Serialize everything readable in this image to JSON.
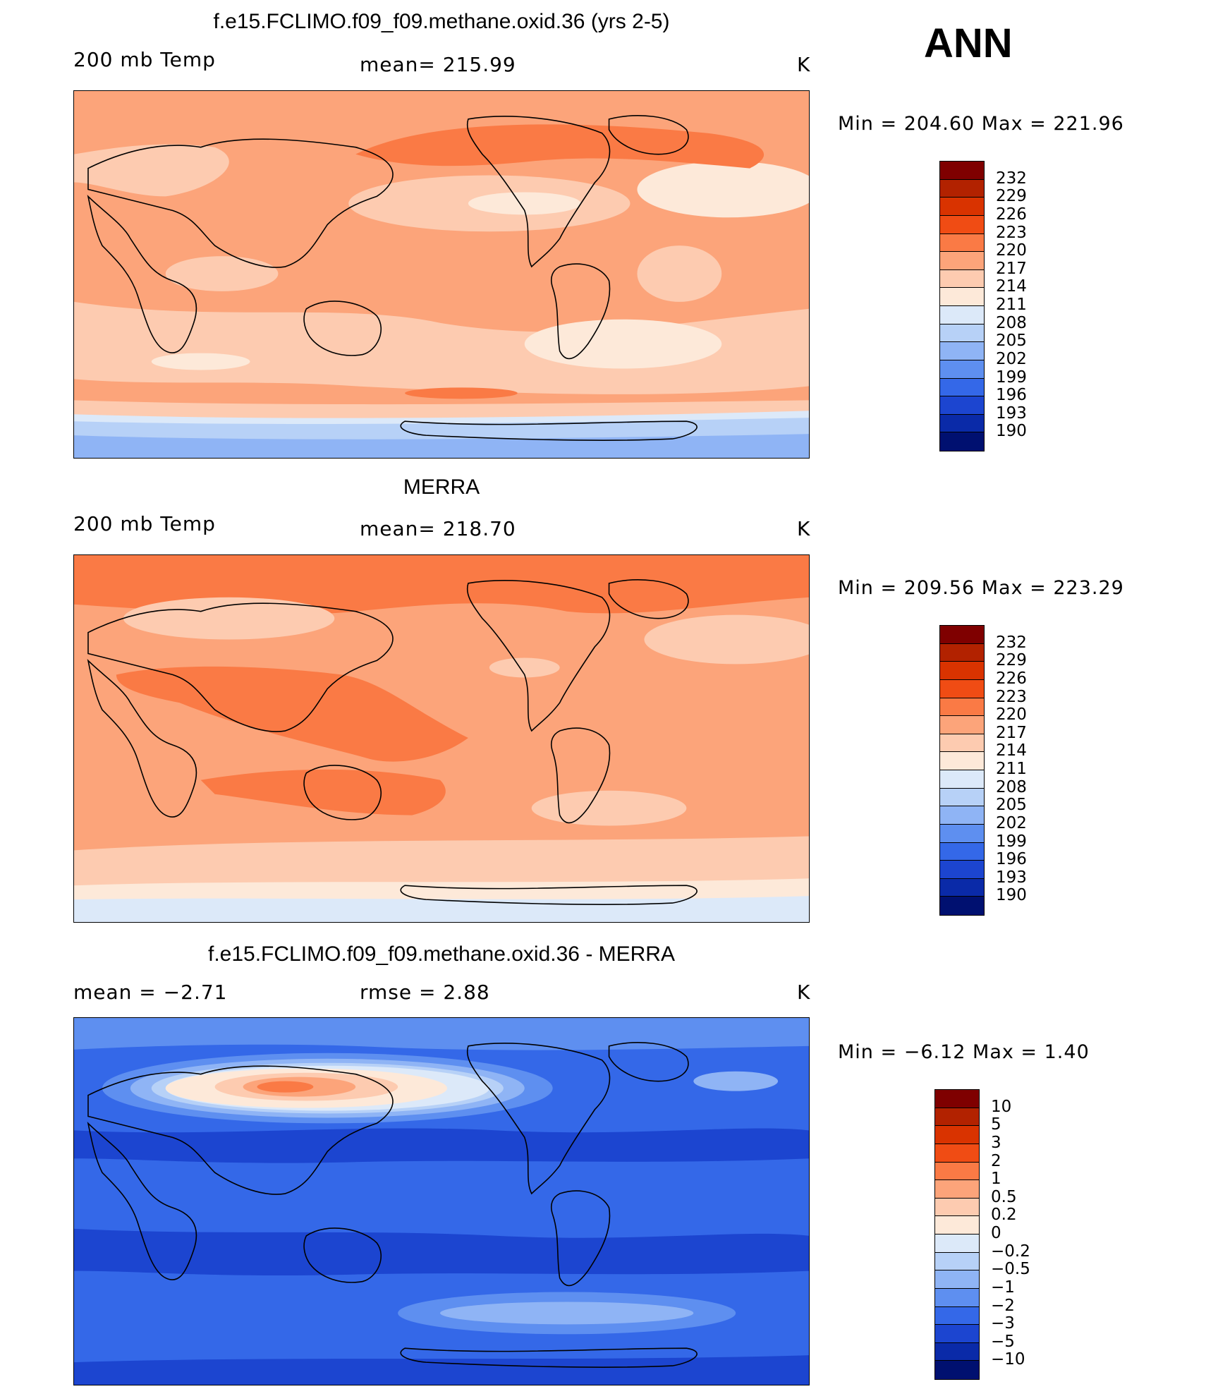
{
  "season": "ANN",
  "panels": [
    {
      "title": "f.e15.FCLIMO.f09_f09.methane.oxid.36 (yrs 2-5)",
      "left_label": "200 mb Temp",
      "center_label": "mean=  215.99",
      "units": "K",
      "minmax": "Min  =  204.60  Max  =  221.96"
    },
    {
      "title": "MERRA",
      "left_label": "200 mb Temp",
      "center_label": "mean=  218.70",
      "units": "K",
      "minmax": "Min  =  209.56  Max  =  223.29"
    },
    {
      "title": "f.e15.FCLIMO.f09_f09.methane.oxid.36 - MERRA",
      "left_label": "mean  =     −2.71",
      "center_label": "rmse  =     2.88",
      "units": "K",
      "minmax": "Min  =    −6.12  Max  =      1.40"
    }
  ],
  "colorbars": {
    "absolute": {
      "labels": [
        "232",
        "229",
        "226",
        "223",
        "220",
        "217",
        "214",
        "211",
        "208",
        "205",
        "202",
        "199",
        "196",
        "193",
        "190"
      ],
      "colors": [
        "#7f0000",
        "#b22200",
        "#d93300",
        "#f04c14",
        "#fa7a45",
        "#fca47a",
        "#fdcbb0",
        "#fde9d9",
        "#dce9f9",
        "#b7d1f7",
        "#8fb4f5",
        "#5e8ff0",
        "#3468e8",
        "#1c45d0",
        "#0a2aa8",
        "#001070"
      ]
    },
    "difference": {
      "labels": [
        "10",
        "5",
        "3",
        "2",
        "1",
        "0.5",
        "0.2",
        "0",
        "−0.2",
        "−0.5",
        "−1",
        "−2",
        "−3",
        "−5",
        "−10"
      ],
      "colors": [
        "#7f0000",
        "#b22200",
        "#d93300",
        "#f04c14",
        "#fa7a45",
        "#fca47a",
        "#fdcbb0",
        "#fde9d9",
        "#dce9f9",
        "#b7d1f7",
        "#8fb4f5",
        "#5e8ff0",
        "#3468e8",
        "#1c45d0",
        "#0a2aa8",
        "#001070"
      ]
    }
  }
}
